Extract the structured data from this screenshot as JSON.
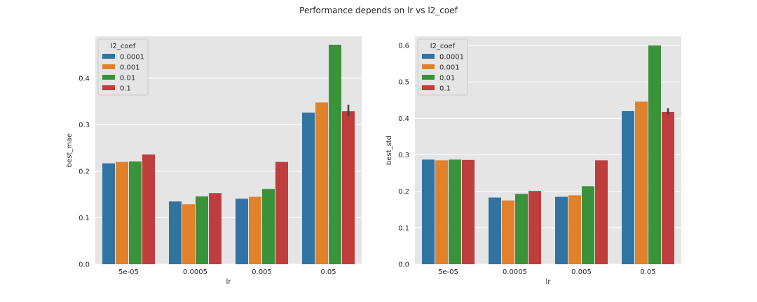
{
  "figure": {
    "title": "Performance depends on lr vs l2_coef"
  },
  "colors": {
    "background": "#e5e5e5",
    "grid": "#ffffff",
    "series": [
      "#3274a1",
      "#e1812c",
      "#3a923a",
      "#c03d3e"
    ],
    "errorbar": "#424242"
  },
  "chart_data": [
    {
      "type": "bar",
      "title": "",
      "xlabel": "lr",
      "ylabel": "best_mae",
      "ylim": [
        0,
        0.49
      ],
      "yticks": [
        0.0,
        0.1,
        0.2,
        0.3,
        0.4
      ],
      "ytick_labels": [
        "0.0",
        "0.1",
        "0.2",
        "0.3",
        "0.4"
      ],
      "grid": true,
      "categories": [
        "5e-05",
        "0.0005",
        "0.005",
        "0.05"
      ],
      "legend": {
        "title": "l2_coef",
        "placement": "top-left"
      },
      "series": [
        {
          "name": "0.0001",
          "values": [
            0.217,
            0.135,
            0.141,
            0.326
          ]
        },
        {
          "name": "0.001",
          "values": [
            0.22,
            0.129,
            0.145,
            0.348
          ]
        },
        {
          "name": "0.01",
          "values": [
            0.221,
            0.146,
            0.162,
            0.472
          ]
        },
        {
          "name": "0.1",
          "values": [
            0.236,
            0.153,
            0.22,
            0.329
          ]
        }
      ],
      "errorbars": [
        {
          "series": 3,
          "category": 3,
          "low": 0.318,
          "high": 0.343
        }
      ]
    },
    {
      "type": "bar",
      "title": "",
      "xlabel": "lr",
      "ylabel": "best_std",
      "ylim": [
        0,
        0.625
      ],
      "yticks": [
        0.0,
        0.1,
        0.2,
        0.3,
        0.4,
        0.5,
        0.6
      ],
      "ytick_labels": [
        "0.0",
        "0.1",
        "0.2",
        "0.3",
        "0.4",
        "0.5",
        "0.6"
      ],
      "grid": true,
      "categories": [
        "5e-05",
        "0.0005",
        "0.005",
        "0.05"
      ],
      "legend": {
        "title": "l2_coef",
        "placement": "top-left"
      },
      "series": [
        {
          "name": "0.0001",
          "values": [
            0.287,
            0.183,
            0.185,
            0.42
          ]
        },
        {
          "name": "0.001",
          "values": [
            0.285,
            0.175,
            0.189,
            0.446
          ]
        },
        {
          "name": "0.01",
          "values": [
            0.287,
            0.193,
            0.214,
            0.6
          ]
        },
        {
          "name": "0.1",
          "values": [
            0.286,
            0.201,
            0.285,
            0.418
          ]
        }
      ],
      "errorbars": [
        {
          "series": 3,
          "category": 3,
          "low": 0.41,
          "high": 0.428
        }
      ]
    }
  ]
}
